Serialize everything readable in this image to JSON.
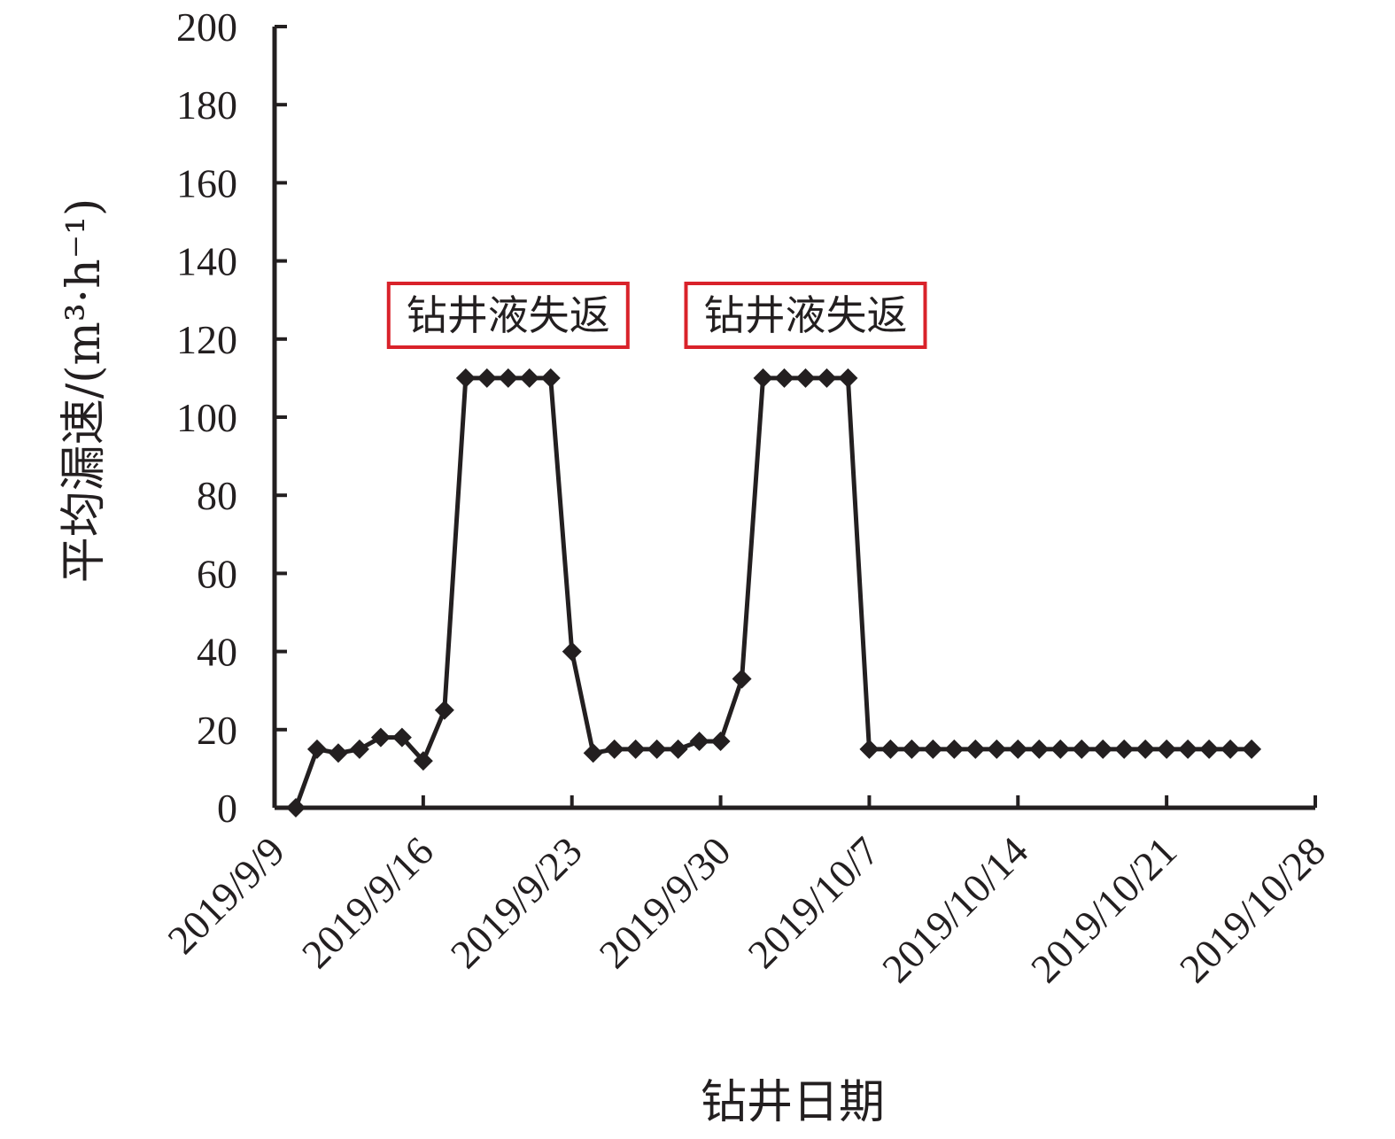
{
  "chart_data": {
    "type": "line",
    "title": "",
    "xlabel": "钻井日期",
    "ylabel": "平均漏速/(m³·h⁻¹)",
    "ylim": [
      0,
      200
    ],
    "yticks": [
      "0",
      "20",
      "40",
      "60",
      "80",
      "100",
      "120",
      "140",
      "160",
      "180",
      "200"
    ],
    "xlim": [
      "2019/9/9",
      "2019/10/28"
    ],
    "xticks": [
      "2019/9/9",
      "2019/9/16",
      "2019/9/23",
      "2019/9/30",
      "2019/10/7",
      "2019/10/14",
      "2019/10/21",
      "2019/10/28"
    ],
    "grid": false,
    "legend": "none",
    "color": "#231f20",
    "annotation_color": "#d9222a",
    "series": [
      {
        "marker": "diamond",
        "x": [
          "2019/9/10",
          "2019/9/11",
          "2019/9/12",
          "2019/9/13",
          "2019/9/14",
          "2019/9/15",
          "2019/9/16",
          "2019/9/17",
          "2019/9/18",
          "2019/9/19",
          "2019/9/20",
          "2019/9/21",
          "2019/9/22",
          "2019/9/23",
          "2019/9/24",
          "2019/9/25",
          "2019/9/26",
          "2019/9/27",
          "2019/9/28",
          "2019/9/29",
          "2019/9/30",
          "2019/10/1",
          "2019/10/2",
          "2019/10/3",
          "2019/10/4",
          "2019/10/5",
          "2019/10/6",
          "2019/10/7",
          "2019/10/8",
          "2019/10/9",
          "2019/10/10",
          "2019/10/11",
          "2019/10/12",
          "2019/10/13",
          "2019/10/14",
          "2019/10/15",
          "2019/10/16",
          "2019/10/17",
          "2019/10/18",
          "2019/10/19",
          "2019/10/20",
          "2019/10/21",
          "2019/10/22",
          "2019/10/23",
          "2019/10/24",
          "2019/10/25"
        ],
        "y": [
          0,
          15,
          14,
          15,
          18,
          18,
          12,
          25,
          110,
          110,
          110,
          110,
          110,
          40,
          14,
          15,
          15,
          15,
          15,
          17,
          17,
          33,
          110,
          110,
          110,
          110,
          110,
          15,
          15,
          15,
          15,
          15,
          15,
          15,
          15,
          15,
          15,
          15,
          15,
          15,
          15,
          15,
          15,
          15,
          15,
          15
        ]
      }
    ],
    "annotations": [
      {
        "text": "钻井液失返",
        "x": "2019/9/20"
      },
      {
        "text": "钻井液失返",
        "x": "2019/10/4"
      }
    ]
  }
}
